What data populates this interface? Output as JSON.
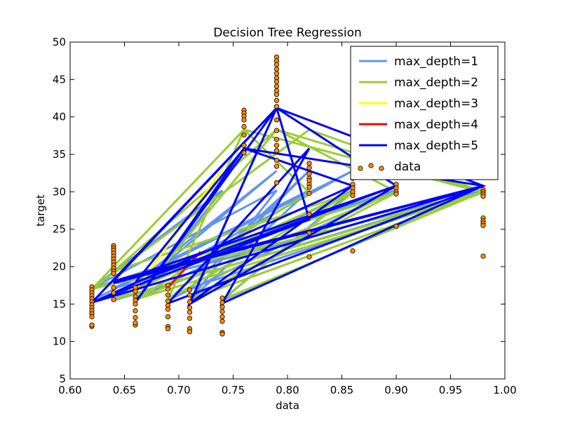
{
  "chart_data": {
    "type": "line",
    "title": "Decision Tree Regression",
    "xlabel": "data",
    "ylabel": "target",
    "xlim": [
      0.6,
      1.0
    ],
    "ylim": [
      5,
      50
    ],
    "xticks": [
      0.6,
      0.65,
      0.7,
      0.75,
      0.8,
      0.85,
      0.9,
      0.95,
      1.0
    ],
    "xtick_labels": [
      "0.60",
      "0.65",
      "0.70",
      "0.75",
      "0.80",
      "0.85",
      "0.90",
      "0.95",
      "1.00"
    ],
    "yticks": [
      5,
      10,
      15,
      20,
      25,
      30,
      35,
      40,
      45,
      50
    ],
    "ytick_labels": [
      "5",
      "10",
      "15",
      "20",
      "25",
      "30",
      "35",
      "40",
      "45",
      "50"
    ],
    "grid": false,
    "legend_position": "top-right",
    "series": [
      {
        "name": "max_depth=1",
        "color": "#6495ed",
        "points": [
          [
            0.62,
            15.5
          ],
          [
            0.86,
            32.8
          ],
          [
            0.66,
            17.1
          ],
          [
            0.79,
            32.8
          ],
          [
            0.64,
            15.5
          ],
          [
            0.98,
            30.2
          ],
          [
            0.71,
            17.1
          ],
          [
            0.82,
            32.8
          ],
          [
            0.69,
            15.5
          ],
          [
            0.9,
            30.2
          ],
          [
            0.62,
            17.1
          ],
          [
            0.74,
            30.2
          ],
          [
            0.66,
            15.5
          ],
          [
            0.86,
            30.2
          ],
          [
            0.74,
            15.5
          ],
          [
            0.98,
            30.2
          ],
          [
            0.64,
            17.1
          ],
          [
            0.82,
            30.2
          ],
          [
            0.71,
            15.5
          ],
          [
            0.79,
            30.2
          ],
          [
            0.62,
            17.1
          ]
        ]
      },
      {
        "name": "max_depth=2",
        "color": "#9acd32",
        "points": [
          [
            0.62,
            17.0
          ],
          [
            0.76,
            38.3
          ],
          [
            0.82,
            29.9
          ],
          [
            0.66,
            15.6
          ],
          [
            0.79,
            38.3
          ],
          [
            0.98,
            30.0
          ],
          [
            0.64,
            15.6
          ],
          [
            0.86,
            30.0
          ],
          [
            0.69,
            15.6
          ],
          [
            0.76,
            38.3
          ],
          [
            0.98,
            29.9
          ],
          [
            0.71,
            15.6
          ],
          [
            0.9,
            29.9
          ],
          [
            0.62,
            17.0
          ],
          [
            0.82,
            38.3
          ],
          [
            0.98,
            30.0
          ],
          [
            0.74,
            15.6
          ],
          [
            0.86,
            29.9
          ],
          [
            0.64,
            19.4
          ],
          [
            0.79,
            38.3
          ],
          [
            0.9,
            30.0
          ],
          [
            0.66,
            15.6
          ],
          [
            0.98,
            29.9
          ],
          [
            0.62,
            17.0
          ]
        ]
      },
      {
        "name": "max_depth=3",
        "color": "#ffff00",
        "points": [
          [
            0.66,
            16.8
          ],
          [
            0.74,
            33.0
          ]
        ]
      },
      {
        "name": "max_depth=4",
        "color": "#ff0000",
        "points": [
          [
            0.69,
            17.2
          ],
          [
            0.72,
            22.0
          ]
        ]
      },
      {
        "name": "max_depth=5",
        "color": "#0000ff",
        "points": [
          [
            0.62,
            15.2
          ],
          [
            0.79,
            41.2
          ],
          [
            0.66,
            15.2
          ],
          [
            0.76,
            35.8
          ],
          [
            0.98,
            30.8
          ],
          [
            0.64,
            18.1
          ],
          [
            0.79,
            41.2
          ],
          [
            0.82,
            26.3
          ],
          [
            0.62,
            15.2
          ],
          [
            0.86,
            30.8
          ],
          [
            0.71,
            15.1
          ],
          [
            0.79,
            41.2
          ],
          [
            0.9,
            30.8
          ],
          [
            0.66,
            17.9
          ],
          [
            0.76,
            35.8
          ],
          [
            0.86,
            30.8
          ],
          [
            0.62,
            15.2
          ],
          [
            0.98,
            30.8
          ],
          [
            0.69,
            15.1
          ],
          [
            0.82,
            35.8
          ],
          [
            0.74,
            15.1
          ],
          [
            0.98,
            30.8
          ],
          [
            0.64,
            17.8
          ],
          [
            0.9,
            30.8
          ],
          [
            0.71,
            15.0
          ],
          [
            0.79,
            41.2
          ],
          [
            0.98,
            30.8
          ],
          [
            0.62,
            15.2
          ]
        ]
      }
    ],
    "scatter": {
      "name": "data",
      "color": "#ff8c00",
      "edgecolor": "#000000",
      "groups": [
        {
          "x": 0.62,
          "y": [
            17.3,
            16.9,
            16.5,
            16.1,
            15.7,
            15.3,
            14.9,
            14.5,
            14.1,
            13.7,
            13.3,
            12.0,
            12.2
          ]
        },
        {
          "x": 0.64,
          "y": [
            22.8,
            22.5,
            22.2,
            21.8,
            21.4,
            21.0,
            20.6,
            20.2,
            19.8,
            19.4,
            19.1,
            17.2,
            16.5,
            15.6
          ]
        },
        {
          "x": 0.66,
          "y": [
            17.2,
            16.7,
            16.0,
            15.5,
            15.0,
            14.1,
            13.2,
            12.2,
            12.5
          ]
        },
        {
          "x": 0.69,
          "y": [
            17.5,
            17.0,
            16.2,
            15.4,
            14.8,
            14.3,
            13.3,
            12.0,
            11.7
          ]
        },
        {
          "x": 0.71,
          "y": [
            16.9,
            16.2,
            15.3,
            14.5,
            13.9,
            13.1,
            11.7,
            11.3
          ]
        },
        {
          "x": 0.74,
          "y": [
            15.8,
            15.2,
            14.6,
            14.0,
            13.3,
            12.7,
            11.2,
            11.0
          ]
        },
        {
          "x": 0.76,
          "y": [
            40.9,
            40.5,
            40.1,
            39.6,
            38.7,
            37.6,
            36.2,
            35.2
          ]
        },
        {
          "x": 0.79,
          "y": [
            48.0,
            47.5,
            47.0,
            46.4,
            45.8,
            45.2,
            44.7,
            44.1,
            43.5,
            43.0,
            42.2,
            41.4,
            39.6,
            38.2,
            37.0,
            36.2,
            35.5,
            34.2,
            33.4,
            31.2
          ]
        },
        {
          "x": 0.82,
          "y": [
            33.8,
            33.2,
            32.4,
            31.8,
            31.5,
            31.0,
            30.6,
            29.8,
            27.0,
            24.5,
            21.3
          ]
        },
        {
          "x": 0.86,
          "y": [
            33.0,
            32.5,
            31.8,
            31.0,
            30.5,
            30.0,
            29.5,
            22.1
          ]
        },
        {
          "x": 0.9,
          "y": [
            31.0,
            30.5,
            30.0,
            29.7,
            25.4
          ]
        },
        {
          "x": 0.98,
          "y": [
            30.3,
            30.0,
            29.7,
            29.4,
            26.5,
            26.1,
            25.8,
            25.5,
            21.4
          ]
        }
      ]
    }
  }
}
